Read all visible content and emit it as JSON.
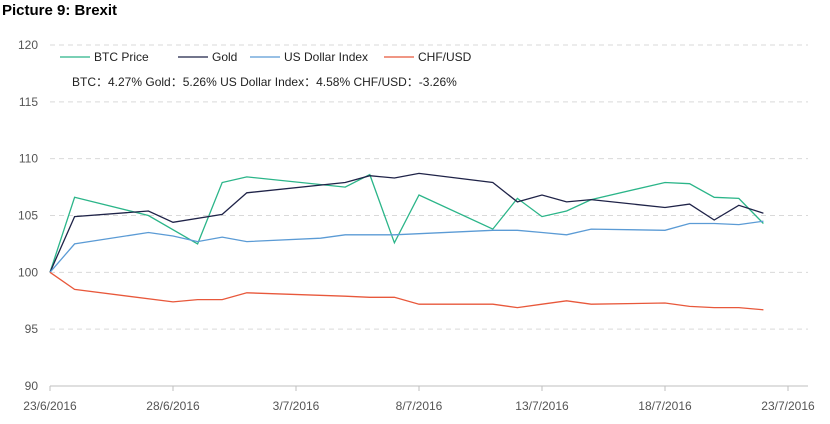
{
  "figure_title": "Picture 9: Brexit",
  "chart_data": {
    "type": "line",
    "title": "",
    "xlabel": "",
    "ylabel": "",
    "ylim": [
      90,
      120
    ],
    "y_ticks": [
      90,
      95,
      100,
      105,
      110,
      115,
      120
    ],
    "x_range": [
      "2016-06-23",
      "2016-07-23"
    ],
    "x_ticks": [
      "23/6/2016",
      "28/6/2016",
      "3/7/2016",
      "8/7/2016",
      "13/7/2016",
      "18/7/2016",
      "23/7/2016"
    ],
    "grid": "horizontal dashed",
    "legend_position": "top-left",
    "annotation": "BTC：4.27%    Gold：5.26%    US Dollar Index：4.58%    CHF/USD：-3.26%",
    "series": [
      {
        "name": "BTC Price",
        "color": "#2bb589",
        "x": [
          "2016-06-23",
          "2016-06-24",
          "2016-06-27",
          "2016-06-29",
          "2016-06-30",
          "2016-07-01",
          "2016-07-05",
          "2016-07-06",
          "2016-07-07",
          "2016-07-08",
          "2016-07-11",
          "2016-07-12",
          "2016-07-13",
          "2016-07-14",
          "2016-07-15",
          "2016-07-18",
          "2016-07-19",
          "2016-07-20",
          "2016-07-21",
          "2016-07-22"
        ],
        "values": [
          100,
          106.6,
          105.0,
          102.5,
          107.9,
          108.4,
          107.5,
          108.6,
          102.6,
          106.8,
          103.8,
          106.5,
          104.9,
          105.4,
          106.4,
          107.9,
          107.8,
          106.6,
          106.5,
          104.3
        ]
      },
      {
        "name": "Gold",
        "color": "#1f2348",
        "x": [
          "2016-06-23",
          "2016-06-24",
          "2016-06-27",
          "2016-06-28",
          "2016-06-30",
          "2016-07-01",
          "2016-07-05",
          "2016-07-06",
          "2016-07-07",
          "2016-07-08",
          "2016-07-11",
          "2016-07-12",
          "2016-07-13",
          "2016-07-14",
          "2016-07-15",
          "2016-07-18",
          "2016-07-19",
          "2016-07-20",
          "2016-07-21",
          "2016-07-22"
        ],
        "values": [
          100,
          104.9,
          105.4,
          104.4,
          105.1,
          107.0,
          107.9,
          108.5,
          108.3,
          108.7,
          107.9,
          106.2,
          106.8,
          106.2,
          106.4,
          105.7,
          106.0,
          104.6,
          105.9,
          105.2
        ]
      },
      {
        "name": "US Dollar Index",
        "color": "#5b9bd5",
        "x": [
          "2016-06-23",
          "2016-06-24",
          "2016-06-27",
          "2016-06-28",
          "2016-06-29",
          "2016-06-30",
          "2016-07-01",
          "2016-07-04",
          "2016-07-05",
          "2016-07-06",
          "2016-07-07",
          "2016-07-08",
          "2016-07-11",
          "2016-07-12",
          "2016-07-13",
          "2016-07-14",
          "2016-07-15",
          "2016-07-18",
          "2016-07-19",
          "2016-07-20",
          "2016-07-21",
          "2016-07-22"
        ],
        "values": [
          100,
          102.5,
          103.5,
          103.2,
          102.7,
          103.1,
          102.7,
          103.0,
          103.3,
          103.3,
          103.3,
          103.4,
          103.7,
          103.7,
          103.5,
          103.3,
          103.8,
          103.7,
          104.3,
          104.3,
          104.2,
          104.5
        ]
      },
      {
        "name": "CHF/USD",
        "color": "#e8583b",
        "x": [
          "2016-06-23",
          "2016-06-24",
          "2016-06-28",
          "2016-06-29",
          "2016-06-30",
          "2016-07-01",
          "2016-07-05",
          "2016-07-06",
          "2016-07-07",
          "2016-07-08",
          "2016-07-11",
          "2016-07-12",
          "2016-07-13",
          "2016-07-14",
          "2016-07-15",
          "2016-07-18",
          "2016-07-19",
          "2016-07-20",
          "2016-07-21",
          "2016-07-22"
        ],
        "values": [
          100,
          98.5,
          97.4,
          97.6,
          97.6,
          98.2,
          97.9,
          97.8,
          97.8,
          97.2,
          97.2,
          96.9,
          97.2,
          97.5,
          97.2,
          97.3,
          97.0,
          96.9,
          96.9,
          96.7
        ]
      }
    ]
  }
}
